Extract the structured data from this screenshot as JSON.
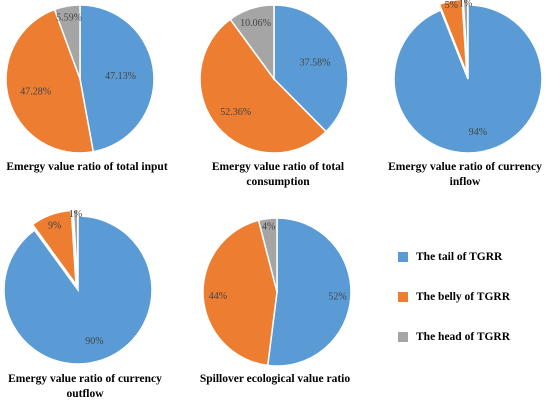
{
  "colors": {
    "tail": "#5B9BD5",
    "belly": "#ED7D31",
    "head": "#A5A5A5"
  },
  "legend": [
    {
      "label": "The tail of TGRR",
      "color_key": "tail"
    },
    {
      "label": "The belly of TGRR",
      "color_key": "belly"
    },
    {
      "label": "The head of TGRR",
      "color_key": "head"
    }
  ],
  "chart_data": [
    {
      "type": "pie",
      "title": "Emergy value ratio of total input",
      "slices": [
        {
          "key": "tail",
          "value": 47.13,
          "label": "47.13%"
        },
        {
          "key": "belly",
          "value": 47.28,
          "label": "47.28%"
        },
        {
          "key": "head",
          "value": 5.59,
          "label": "5.59%"
        }
      ]
    },
    {
      "type": "pie",
      "title": "Emergy value ratio of total consumption",
      "slices": [
        {
          "key": "tail",
          "value": 37.58,
          "label": "37.58%"
        },
        {
          "key": "belly",
          "value": 52.36,
          "label": "52.36%"
        },
        {
          "key": "head",
          "value": 10.06,
          "label": "10.06%"
        }
      ]
    },
    {
      "type": "pie",
      "title": "Emergy value ratio of currency inflow",
      "slices": [
        {
          "key": "tail",
          "value": 94,
          "label": "94%"
        },
        {
          "key": "belly",
          "value": 5,
          "label": "5%"
        },
        {
          "key": "head",
          "value": 1,
          "label": "1%"
        }
      ]
    },
    {
      "type": "pie",
      "title": "Emergy value ratio of currency outflow",
      "slices": [
        {
          "key": "tail",
          "value": 90,
          "label": "90%"
        },
        {
          "key": "belly",
          "value": 9,
          "label": "9%"
        },
        {
          "key": "head",
          "value": 1,
          "label": "1%"
        }
      ]
    },
    {
      "type": "pie",
      "title": "Spillover ecological value ratio",
      "slices": [
        {
          "key": "tail",
          "value": 52,
          "label": "52%"
        },
        {
          "key": "belly",
          "value": 44,
          "label": "44%"
        },
        {
          "key": "head",
          "value": 4,
          "label": "4%"
        }
      ]
    }
  ]
}
